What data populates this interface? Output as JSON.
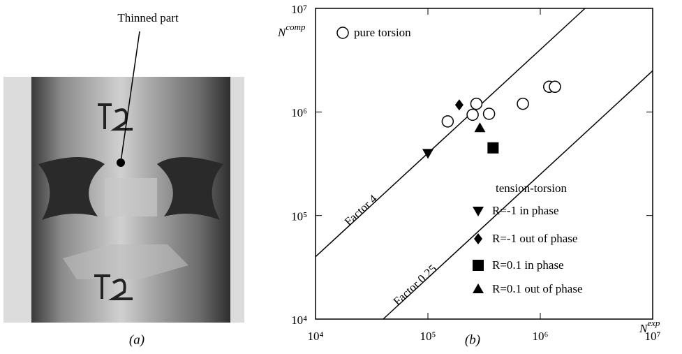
{
  "photo": {
    "annotation": "Thinned part",
    "caption": "(a)"
  },
  "chart_data": {
    "type": "scatter",
    "caption": "(b)",
    "xscale": "log",
    "yscale": "log",
    "xlim": [
      10000,
      10000000
    ],
    "ylim": [
      10000,
      10000000
    ],
    "xticks": [
      {
        "value": 10000,
        "label": "10⁴"
      },
      {
        "value": 100000,
        "label": "10⁵"
      },
      {
        "value": 1000000,
        "label": "10⁶"
      },
      {
        "value": 10000000,
        "label": "10⁷"
      }
    ],
    "yticks": [
      {
        "value": 10000,
        "label": "10⁴"
      },
      {
        "value": 100000,
        "label": "10⁵"
      },
      {
        "value": 1000000,
        "label": "10⁶"
      },
      {
        "value": 10000000,
        "label": "10⁷"
      }
    ],
    "xlabel": {
      "text": "N",
      "sup": "exp"
    },
    "ylabel": {
      "text": "N",
      "sup": "comp"
    },
    "legend_title": "tension-torsion",
    "reference_lines": [
      {
        "label": "Factor 4",
        "factor": 4
      },
      {
        "label": "Factor 0.25",
        "factor": 0.25
      }
    ],
    "series": [
      {
        "name": "pure torsion",
        "marker": "circle",
        "color": "#000000",
        "x": [
          150000,
          250000,
          270000,
          350000,
          700000,
          1200000,
          1350000
        ],
        "values": [
          810000,
          940000,
          1200000,
          960000,
          1200000,
          1750000,
          1750000
        ]
      },
      {
        "name": "R=-1 in phase",
        "marker": "triangle-down",
        "color": "#000000",
        "x": [
          100000
        ],
        "values": [
          400000
        ]
      },
      {
        "name": "R=-1 out of phase",
        "marker": "diamond",
        "color": "#000000",
        "x": [
          190000
        ],
        "values": [
          1170000
        ]
      },
      {
        "name": "R=0.1 in phase",
        "marker": "square",
        "color": "#000000",
        "x": [
          380000
        ],
        "values": [
          450000
        ]
      },
      {
        "name": "R=0.1 out of phase",
        "marker": "triangle-up",
        "color": "#000000",
        "x": [
          290000
        ],
        "values": [
          700000
        ]
      }
    ]
  }
}
